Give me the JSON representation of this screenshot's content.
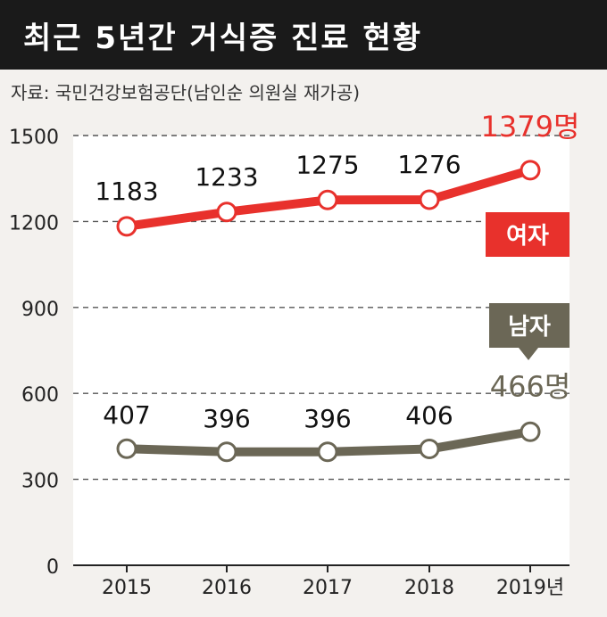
{
  "title": "최근 5년간 거식증 진료 현황",
  "source": "자료: 국민건강보험공단(남인순 의원실 재가공)",
  "colors": {
    "female": "#e8312c",
    "male": "#6b6756",
    "grid": "#555555",
    "axis": "#222222",
    "plot_bg": "#ffffff",
    "page_bg": "#f3f1ee"
  },
  "chart_data": {
    "type": "line",
    "categories": [
      "2015",
      "2016",
      "2017",
      "2018",
      "2019년"
    ],
    "yticks": [
      "0",
      "300",
      "600",
      "900",
      "1200",
      "1500"
    ],
    "ylim": [
      0,
      1500
    ],
    "grid": true,
    "series": [
      {
        "name": "여자",
        "values": [
          1183,
          1233,
          1275,
          1276,
          1379
        ],
        "labels": [
          "1183",
          "1233",
          "1275",
          "1276",
          "1379명"
        ]
      },
      {
        "name": "남자",
        "values": [
          407,
          396,
          396,
          406,
          466
        ],
        "labels": [
          "407",
          "396",
          "396",
          "406",
          "466명"
        ]
      }
    ]
  }
}
